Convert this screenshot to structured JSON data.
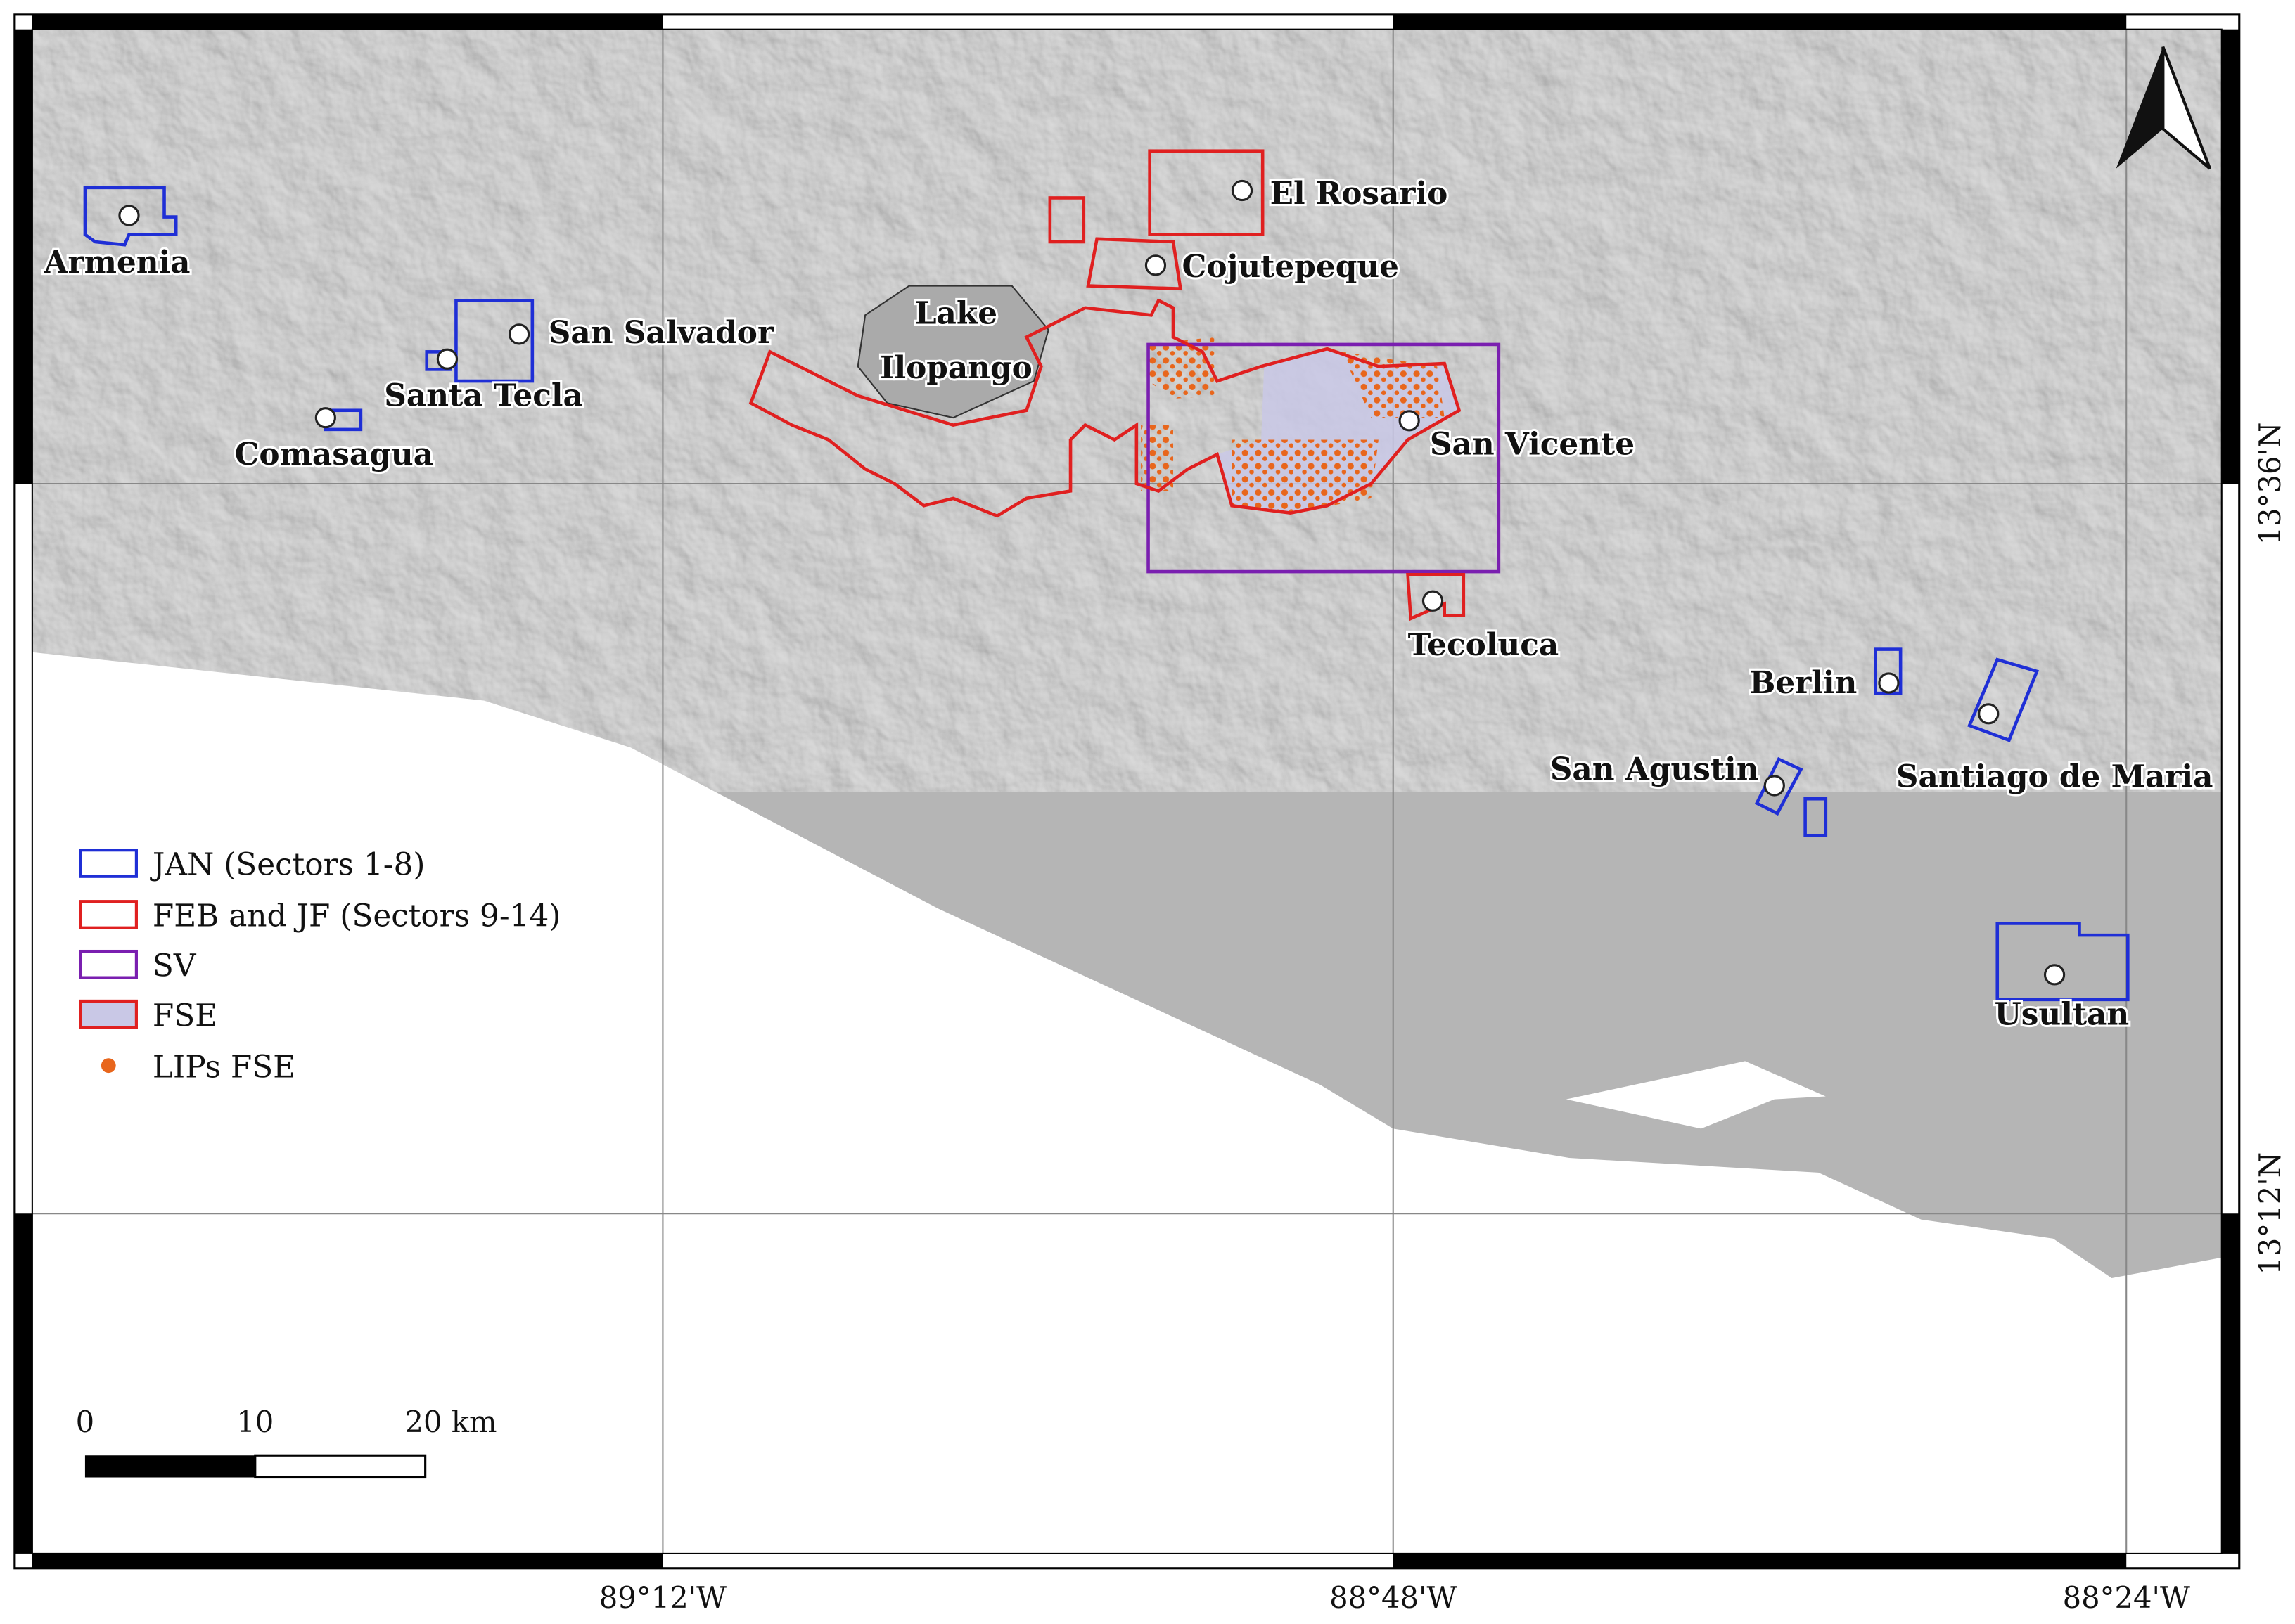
{
  "places": [
    "Armenia",
    "San Salvador",
    "Santa Tecla",
    "Comasagua",
    "El Rosario",
    "Cojutepeque",
    "San Vicente",
    "Tecoluca",
    "Berlin",
    "San Agustin",
    "Santiago de Maria",
    "Usultan"
  ],
  "lake": [
    "Lake",
    "Ilopango"
  ],
  "legend": [
    "JAN (Sectors 1-8)",
    "FEB and JF (Sectors 9-14)",
    "SV",
    "FSE",
    "LIPs FSE"
  ],
  "scale_bar": [
    "0",
    "10",
    "20 km"
  ],
  "longitude_labels": [
    "89°12'W",
    "88°48'W",
    "88°24'W"
  ],
  "latitude_labels": [
    "13°36'N",
    "13°12'N"
  ]
}
